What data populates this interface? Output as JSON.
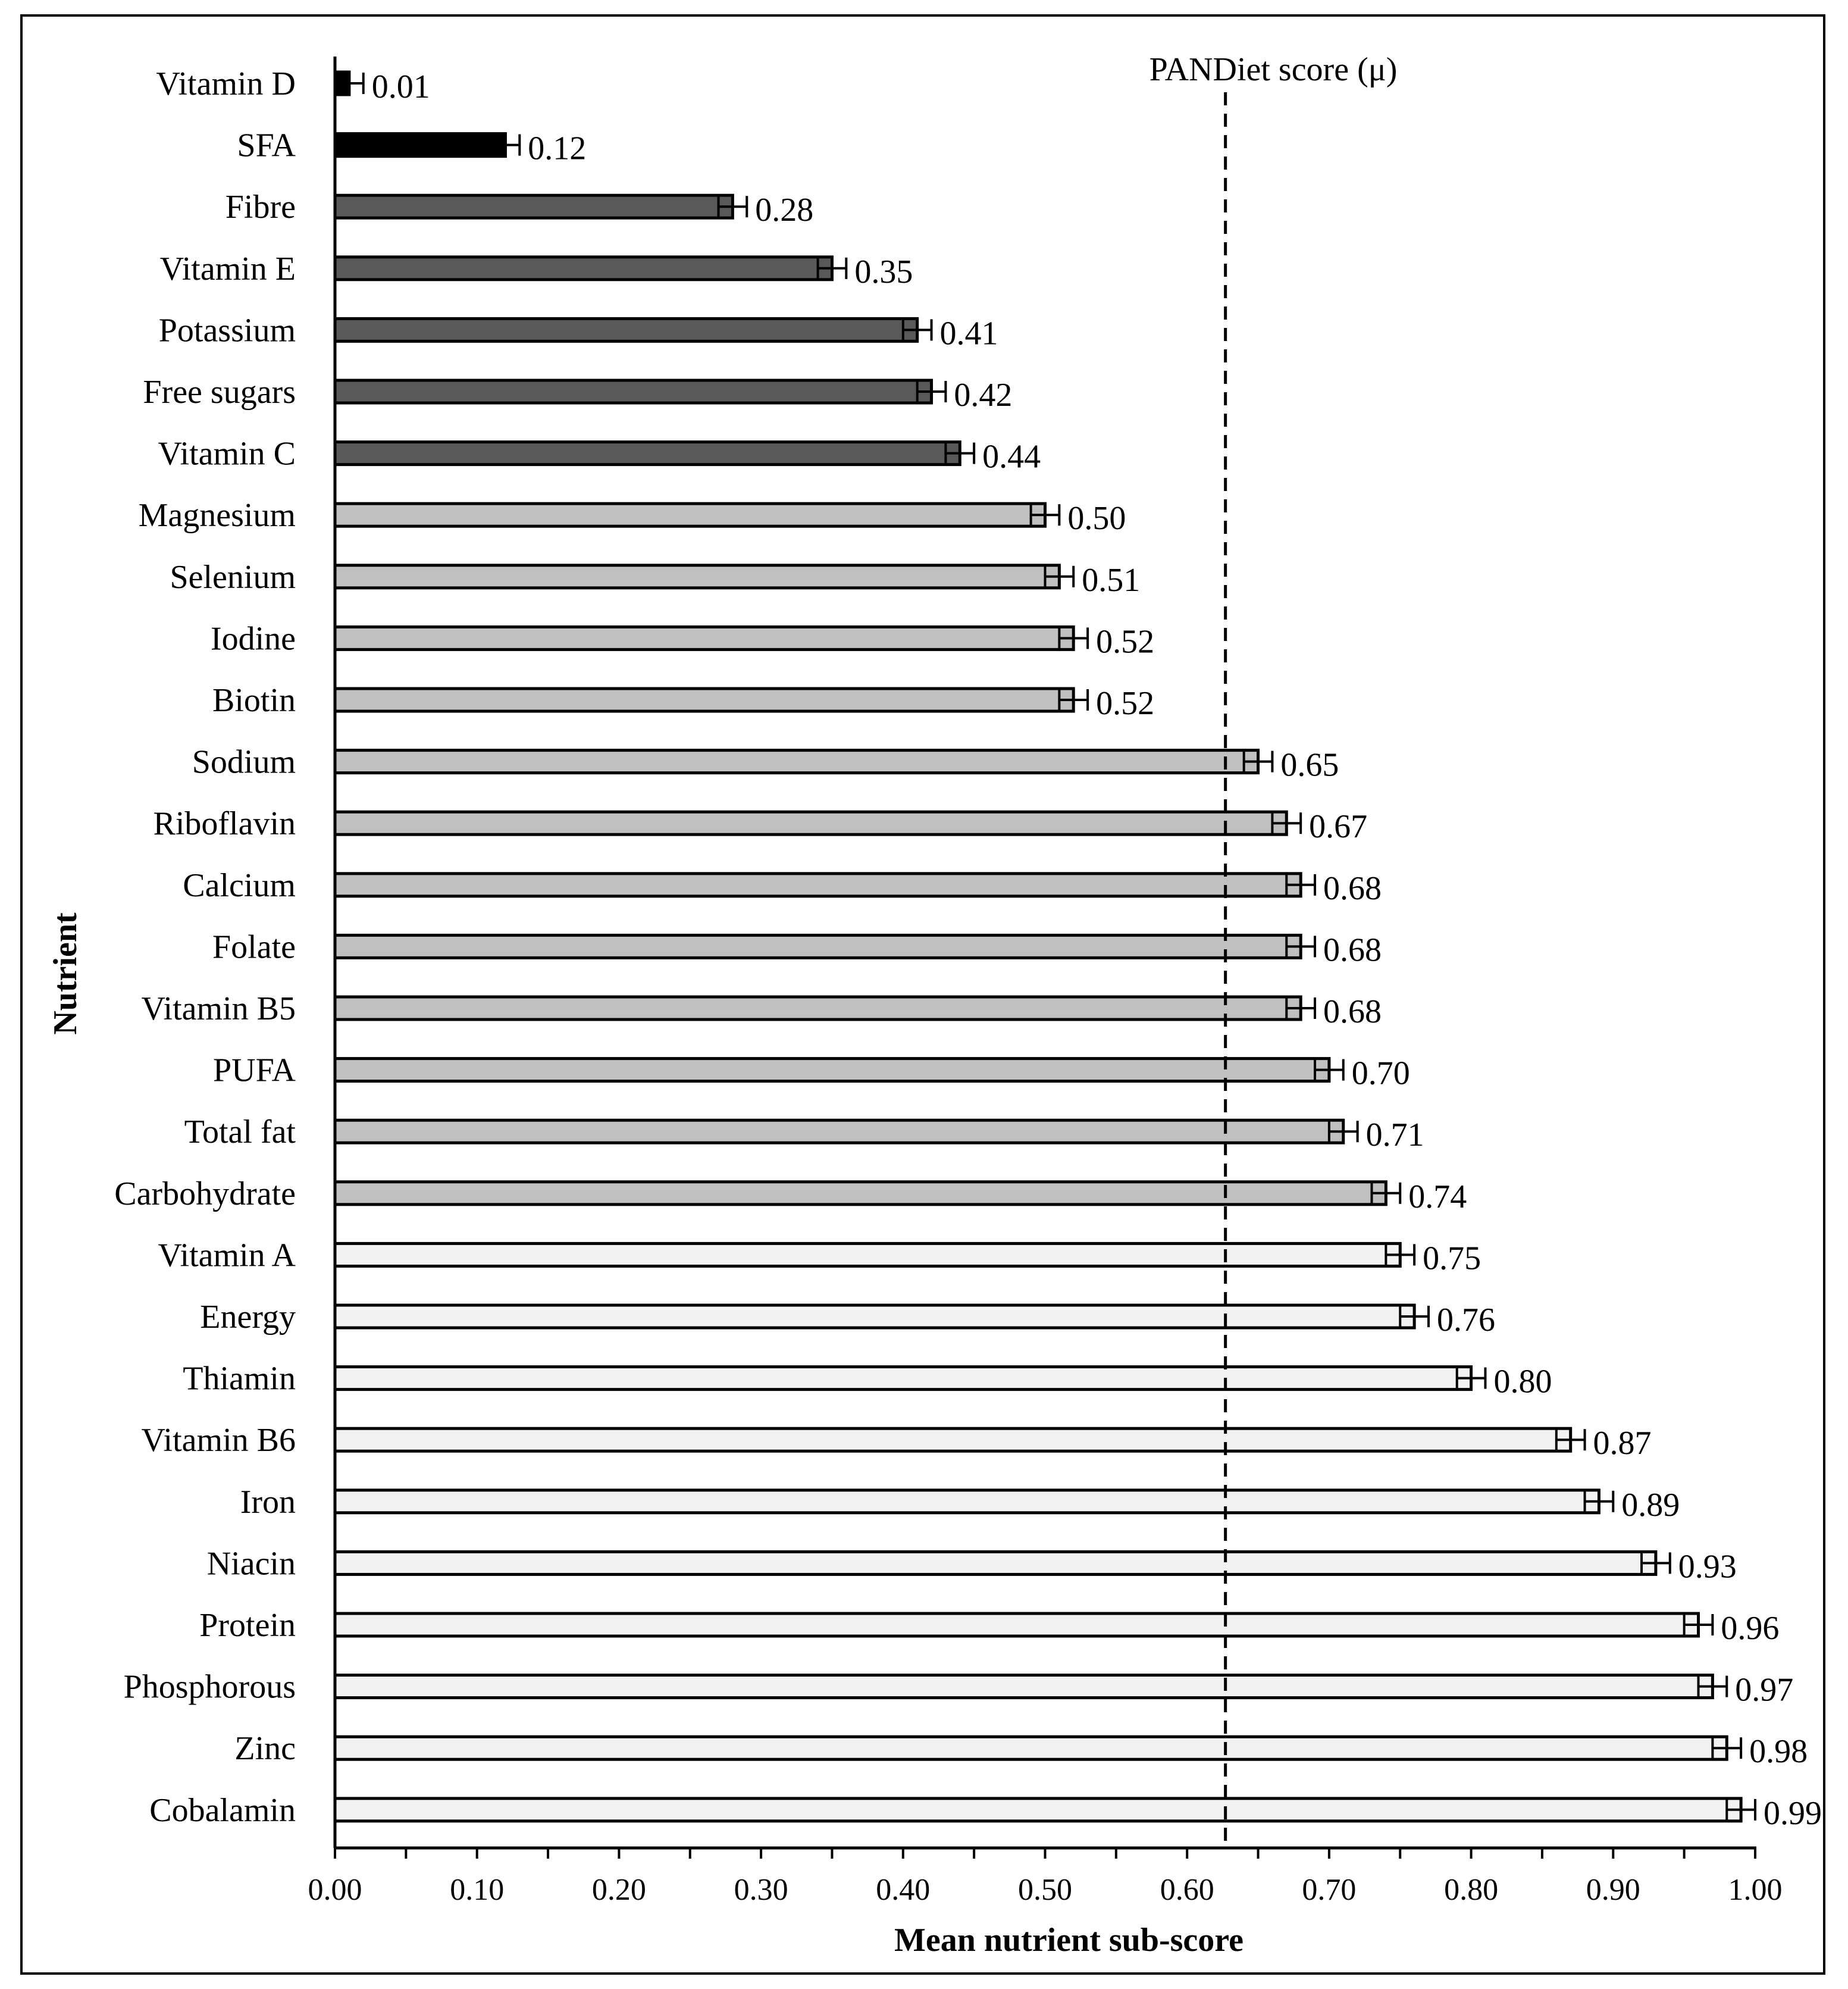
{
  "chart_data": {
    "type": "bar",
    "orientation": "horizontal",
    "title": "",
    "xlabel": "Mean nutrient sub-score",
    "ylabel": "Nutrient",
    "xlim": [
      0,
      1
    ],
    "x_ticks": [
      "0.00",
      "0.10",
      "0.20",
      "0.30",
      "0.40",
      "0.50",
      "0.60",
      "0.70",
      "0.80",
      "0.90",
      "1.00"
    ],
    "reference_line": {
      "label": "PANDiet score (μ)",
      "value": 0.627,
      "style": "dashed"
    },
    "colors": {
      "black": "#000000",
      "dark": "#595959",
      "medium": "#c0c0c0",
      "light": "#f2f2f2"
    },
    "categories": [
      "Vitamin D",
      "SFA",
      "Fibre",
      "Vitamin E",
      "Potassium",
      "Free sugars",
      "Vitamin C",
      "Magnesium",
      "Selenium",
      "Iodine",
      "Biotin",
      "Sodium",
      "Riboflavin",
      "Calcium",
      "Folate",
      "Vitamin B5",
      "PUFA",
      "Total fat",
      "Carbohydrate",
      "Vitamin A",
      "Energy",
      "Thiamin",
      "Vitamin B6",
      "Iron",
      "Niacin",
      "Protein",
      "Phosphorous",
      "Zinc",
      "Cobalamin"
    ],
    "values": [
      0.01,
      0.12,
      0.28,
      0.35,
      0.41,
      0.42,
      0.44,
      0.5,
      0.51,
      0.52,
      0.52,
      0.65,
      0.67,
      0.68,
      0.68,
      0.68,
      0.7,
      0.71,
      0.74,
      0.75,
      0.76,
      0.8,
      0.87,
      0.89,
      0.93,
      0.96,
      0.97,
      0.98,
      0.99
    ],
    "value_labels": [
      "0.01",
      "0.12",
      "0.28",
      "0.35",
      "0.41",
      "0.42",
      "0.44",
      "0.50",
      "0.51",
      "0.52",
      "0.52",
      "0.65",
      "0.67",
      "0.68",
      "0.68",
      "0.68",
      "0.70",
      "0.71",
      "0.74",
      "0.75",
      "0.76",
      "0.80",
      "0.87",
      "0.89",
      "0.93",
      "0.96",
      "0.97",
      "0.98",
      "0.99"
    ],
    "error": [
      0.01,
      0.01,
      0.01,
      0.01,
      0.01,
      0.01,
      0.01,
      0.01,
      0.01,
      0.01,
      0.01,
      0.01,
      0.01,
      0.01,
      0.01,
      0.01,
      0.01,
      0.01,
      0.01,
      0.01,
      0.01,
      0.01,
      0.01,
      0.01,
      0.01,
      0.01,
      0.01,
      0.01,
      0.01
    ],
    "color_groups": [
      "black",
      "black",
      "dark",
      "dark",
      "dark",
      "dark",
      "dark",
      "medium",
      "medium",
      "medium",
      "medium",
      "medium",
      "medium",
      "medium",
      "medium",
      "medium",
      "medium",
      "medium",
      "medium",
      "light",
      "light",
      "light",
      "light",
      "light",
      "light",
      "light",
      "light",
      "light",
      "light"
    ]
  }
}
